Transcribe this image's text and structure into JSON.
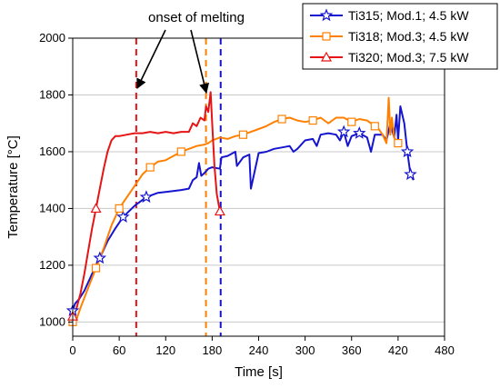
{
  "chart_data": {
    "type": "line",
    "title": "",
    "xlabel": "Time [s]",
    "ylabel": "Temperature [°C]",
    "xlim": [
      0,
      480
    ],
    "ylim": [
      950,
      2000
    ],
    "xticks": [
      0,
      60,
      120,
      180,
      240,
      300,
      360,
      420,
      480
    ],
    "yticks": [
      1000,
      1200,
      1400,
      1600,
      1800,
      2000
    ],
    "grid": "horizontal",
    "legend_position": "top-right",
    "series": [
      {
        "name": "Ti315; Mod.1; 4.5 kW",
        "color": "#1515d0",
        "marker": "star",
        "x": [
          0,
          3,
          8,
          15,
          25,
          35,
          45,
          55,
          65,
          80,
          95,
          110,
          125,
          140,
          150,
          155,
          160,
          163,
          166,
          170,
          175,
          180,
          190,
          192,
          200,
          210,
          212,
          220,
          228,
          230,
          240,
          250,
          260,
          270,
          280,
          285,
          290,
          300,
          310,
          315,
          320,
          330,
          340,
          345,
          350,
          355,
          360,
          365,
          370,
          380,
          385,
          390,
          400,
          405,
          410,
          415,
          418,
          420,
          423,
          428,
          432,
          436,
          440
        ],
        "y": [
          1040,
          1065,
          1080,
          1110,
          1170,
          1225,
          1285,
          1330,
          1370,
          1410,
          1440,
          1455,
          1460,
          1465,
          1470,
          1500,
          1510,
          1560,
          1515,
          1525,
          1540,
          1545,
          1540,
          1580,
          1585,
          1600,
          1550,
          1580,
          1590,
          1470,
          1595,
          1600,
          1610,
          1615,
          1620,
          1600,
          1610,
          1640,
          1645,
          1620,
          1660,
          1665,
          1660,
          1640,
          1670,
          1620,
          1655,
          1660,
          1665,
          1650,
          1600,
          1660,
          1660,
          1640,
          1700,
          1650,
          1730,
          1640,
          1760,
          1700,
          1600,
          1520,
          1500
        ]
      },
      {
        "name": "Ti318; Mod.3; 4.5 kW",
        "color": "#ff8000",
        "marker": "square",
        "x": [
          0,
          5,
          10,
          20,
          30,
          40,
          50,
          60,
          70,
          80,
          90,
          100,
          110,
          120,
          130,
          140,
          150,
          160,
          170,
          175,
          180,
          190,
          200,
          210,
          220,
          230,
          240,
          250,
          260,
          270,
          280,
          290,
          300,
          310,
          320,
          330,
          340,
          350,
          360,
          370,
          380,
          390,
          395,
          400,
          405,
          408,
          410,
          412,
          415,
          420
        ],
        "y": [
          1000,
          1010,
          1050,
          1120,
          1190,
          1260,
          1340,
          1400,
          1440,
          1480,
          1520,
          1545,
          1565,
          1570,
          1585,
          1600,
          1610,
          1620,
          1625,
          1630,
          1640,
          1650,
          1645,
          1655,
          1660,
          1670,
          1680,
          1690,
          1705,
          1715,
          1720,
          1710,
          1705,
          1710,
          1720,
          1700,
          1720,
          1720,
          1705,
          1715,
          1710,
          1690,
          1680,
          1660,
          1630,
          1790,
          1660,
          1720,
          1650,
          1630
        ]
      },
      {
        "name": "Ti320; Mod.3; 7.5 kW",
        "color": "#e61414",
        "marker": "triangle",
        "x": [
          0,
          5,
          10,
          15,
          20,
          25,
          30,
          35,
          40,
          45,
          50,
          55,
          60,
          70,
          80,
          90,
          100,
          110,
          120,
          130,
          140,
          150,
          155,
          160,
          165,
          170,
          172,
          175,
          178,
          180,
          183,
          186,
          190
        ],
        "y": [
          1020,
          1050,
          1100,
          1170,
          1250,
          1330,
          1400,
          1470,
          1540,
          1600,
          1640,
          1655,
          1655,
          1660,
          1665,
          1665,
          1670,
          1665,
          1670,
          1665,
          1670,
          1670,
          1700,
          1690,
          1720,
          1710,
          1760,
          1740,
          1810,
          1700,
          1550,
          1450,
          1390
        ]
      }
    ],
    "vlines": [
      {
        "x": 82,
        "color": "#e61414"
      },
      {
        "x": 172,
        "color": "#ff8000"
      },
      {
        "x": 191,
        "color": "#1515d0"
      }
    ],
    "annotation": {
      "text": "onset of melting"
    }
  }
}
